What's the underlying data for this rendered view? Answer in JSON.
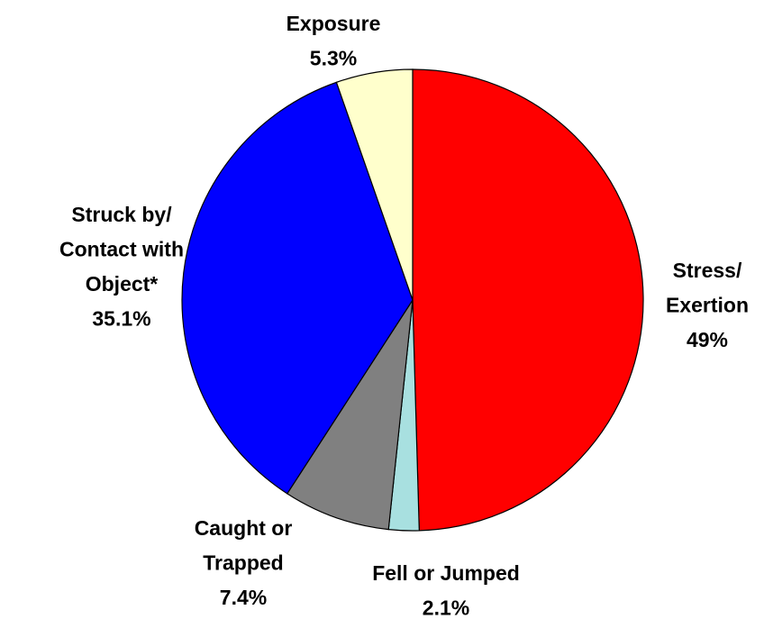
{
  "chart_data": {
    "type": "pie",
    "categories": [
      [
        "Stress/",
        "Exertion"
      ],
      [
        "Fell or Jumped"
      ],
      [
        "Caught or",
        "Trapped"
      ],
      [
        "Struck by/",
        "Contact with",
        "Object*"
      ],
      [
        "Exposure"
      ]
    ],
    "values": [
      49,
      2.1,
      7.4,
      35.1,
      5.3
    ],
    "value_labels": [
      "49%",
      "2.1%",
      "7.4%",
      "35.1%",
      "5.3%"
    ],
    "colors": [
      "#ff0000",
      "#a8e0e0",
      "#808080",
      "#0000ff",
      "#ffffcc"
    ]
  }
}
